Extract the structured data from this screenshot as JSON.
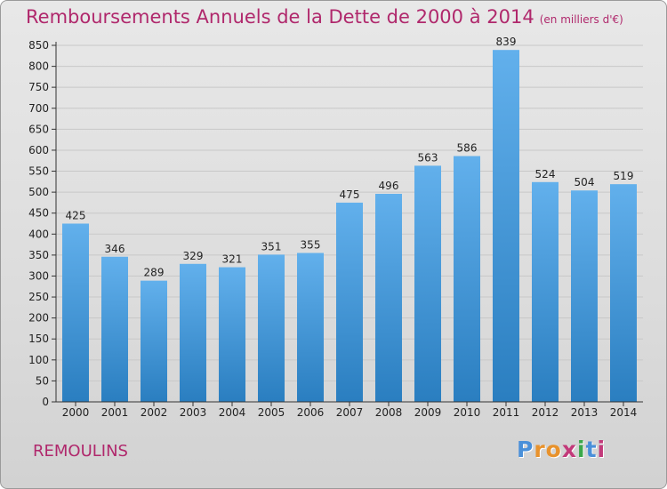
{
  "header": {
    "title": "Remboursements Annuels de la Dette de 2000 à 2014",
    "unit": "(en milliers d'€)"
  },
  "footer": {
    "commune": "REMOULINS",
    "logo_letters": [
      "P",
      "r",
      "o",
      "x",
      "i",
      "t",
      "i"
    ],
    "logo_colors": [
      "#4a90d9",
      "#e8922c",
      "#e8922c",
      "#c23a7a",
      "#3aa84a",
      "#4a90d9",
      "#c23a7a"
    ]
  },
  "colors": {
    "bar_top": "#62b0ec",
    "bar_bottom": "#2a7ec0",
    "title": "#b0286c",
    "grid": "#c8c8c8"
  },
  "chart_data": {
    "type": "bar",
    "title": "Remboursements Annuels de la Dette de 2000 à 2014",
    "subtitle": "(en milliers d'€)",
    "xlabel": "",
    "ylabel": "",
    "categories": [
      "2000",
      "2001",
      "2002",
      "2003",
      "2004",
      "2005",
      "2006",
      "2007",
      "2008",
      "2009",
      "2010",
      "2011",
      "2012",
      "2013",
      "2014"
    ],
    "values": [
      425,
      346,
      289,
      329,
      321,
      351,
      355,
      475,
      496,
      563,
      586,
      839,
      524,
      504,
      519
    ],
    "ylim": [
      0,
      850
    ],
    "yticks": [
      0,
      50,
      100,
      150,
      200,
      250,
      300,
      350,
      400,
      450,
      500,
      550,
      600,
      650,
      700,
      750,
      800,
      850
    ],
    "grid": true,
    "data_labels": true
  }
}
